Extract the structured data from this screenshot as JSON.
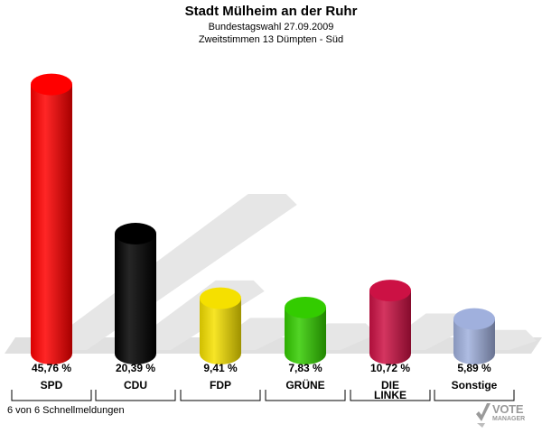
{
  "header": {
    "title": "Stadt Mülheim an der Ruhr",
    "subtitle1": "Bundestagswahl 27.09.2009",
    "subtitle2": "Zweitstimmen 13 Dümpten - Süd"
  },
  "footer": {
    "status": "6 von 6 Schnellmeldungen"
  },
  "logo": {
    "text1": "VOTE",
    "text2": "MANAGER",
    "icon": "checkmark-logo-icon"
  },
  "chart_data": {
    "type": "bar",
    "title": "Stadt Mülheim an der Ruhr",
    "categories": [
      "SPD",
      "CDU",
      "FDP",
      "GRÜNE",
      "DIE LINKE",
      "Sonstige"
    ],
    "category_lines": [
      [
        "SPD"
      ],
      [
        "CDU"
      ],
      [
        "FDP"
      ],
      [
        "GRÜNE"
      ],
      [
        "DIE",
        "LINKE"
      ],
      [
        "Sonstige"
      ]
    ],
    "values": [
      45.76,
      20.39,
      9.41,
      7.83,
      10.72,
      5.89
    ],
    "value_labels": [
      "45,76 %",
      "20,39 %",
      "9,41 %",
      "7,83 %",
      "10,72 %",
      "5,89 %"
    ],
    "colors": [
      "#ff0000",
      "#000000",
      "#f5e000",
      "#33cc00",
      "#cc1144",
      "#a0b0dd"
    ],
    "ylim": [
      0,
      50
    ],
    "grid": false,
    "legend": "none"
  }
}
